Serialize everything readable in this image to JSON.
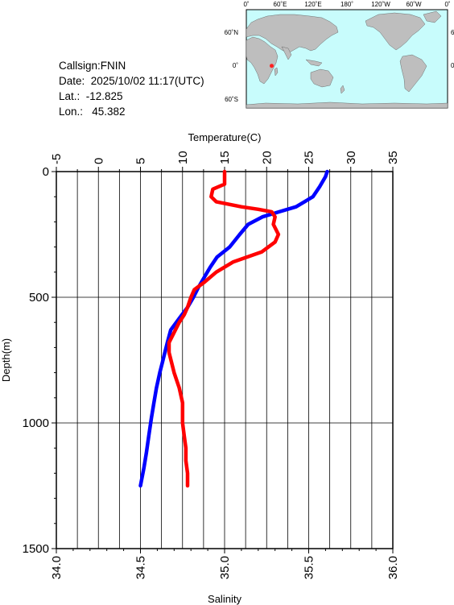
{
  "station": {
    "callsign": "Callsign:FNIN",
    "date": "Date:  2025/10/02 11:17(UTC)",
    "lat": "Lat.:  -12.825",
    "lon": "Lon.:   45.382"
  },
  "map": {
    "top_labels": [
      "0˚",
      "60˚E",
      "120˚E",
      "180˚",
      "120˚W",
      "60˚W",
      "0˚"
    ],
    "lat_labels": [
      "60˚N",
      "0˚",
      "60˚S"
    ],
    "ocean_color": "#c8fcfc",
    "land_color": "#bebebe",
    "marker_color": "#ff2020",
    "station_lon": 45.382,
    "station_lat": -12.825
  },
  "chart_data": {
    "type": "line",
    "ylabel": "Depth(m)",
    "top_xlabel": "Temperature(C)",
    "bottom_xlabel": "Salinity",
    "ylim": [
      0,
      1500
    ],
    "y_ticks": [
      "0",
      "500",
      "1000",
      "1500"
    ],
    "temperature_lim": [
      -5,
      35
    ],
    "temperature_ticks": [
      "-5",
      "0",
      "5",
      "10",
      "15",
      "20",
      "25",
      "30",
      "35"
    ],
    "salinity_lim": [
      34.0,
      36.0
    ],
    "salinity_ticks": [
      "34.0",
      "34.5",
      "35.0",
      "35.5",
      "36.0"
    ],
    "grid": true,
    "series": [
      {
        "color": "#0000ff",
        "x_axis": "temperature",
        "points": [
          [
            27.2,
            0
          ],
          [
            27.0,
            20
          ],
          [
            26.3,
            60
          ],
          [
            25.5,
            100
          ],
          [
            23.5,
            140
          ],
          [
            21.5,
            160
          ],
          [
            19.5,
            180
          ],
          [
            17.8,
            210
          ],
          [
            16.8,
            250
          ],
          [
            15.6,
            300
          ],
          [
            14.1,
            340
          ],
          [
            13.3,
            380
          ],
          [
            12.6,
            420
          ],
          [
            11.9,
            460
          ],
          [
            11.3,
            500
          ],
          [
            10.6,
            540
          ],
          [
            9.7,
            580
          ],
          [
            8.6,
            630
          ],
          [
            8.2,
            680
          ],
          [
            7.9,
            720
          ],
          [
            7.6,
            760
          ],
          [
            7.3,
            800
          ],
          [
            6.9,
            860
          ],
          [
            6.6,
            920
          ],
          [
            6.3,
            980
          ],
          [
            6.0,
            1050
          ],
          [
            5.7,
            1120
          ],
          [
            5.4,
            1180
          ],
          [
            5.0,
            1250
          ]
        ]
      },
      {
        "color": "#ff0000",
        "x_axis": "salinity",
        "points": [
          [
            35.0,
            0
          ],
          [
            35.0,
            50
          ],
          [
            34.93,
            70
          ],
          [
            34.92,
            100
          ],
          [
            34.95,
            120
          ],
          [
            35.1,
            140
          ],
          [
            35.2,
            150
          ],
          [
            35.28,
            160
          ],
          [
            35.3,
            180
          ],
          [
            35.29,
            210
          ],
          [
            35.32,
            250
          ],
          [
            35.3,
            280
          ],
          [
            35.22,
            320
          ],
          [
            35.05,
            360
          ],
          [
            34.95,
            400
          ],
          [
            34.88,
            440
          ],
          [
            34.82,
            470
          ],
          [
            34.8,
            500
          ],
          [
            34.78,
            540
          ],
          [
            34.76,
            570
          ],
          [
            34.73,
            600
          ],
          [
            34.7,
            640
          ],
          [
            34.67,
            680
          ],
          [
            34.67,
            720
          ],
          [
            34.7,
            800
          ],
          [
            34.73,
            860
          ],
          [
            34.75,
            920
          ],
          [
            34.75,
            1000
          ],
          [
            34.76,
            1050
          ],
          [
            34.77,
            1100
          ],
          [
            34.77,
            1150
          ],
          [
            34.78,
            1200
          ],
          [
            34.78,
            1250
          ]
        ]
      }
    ]
  }
}
